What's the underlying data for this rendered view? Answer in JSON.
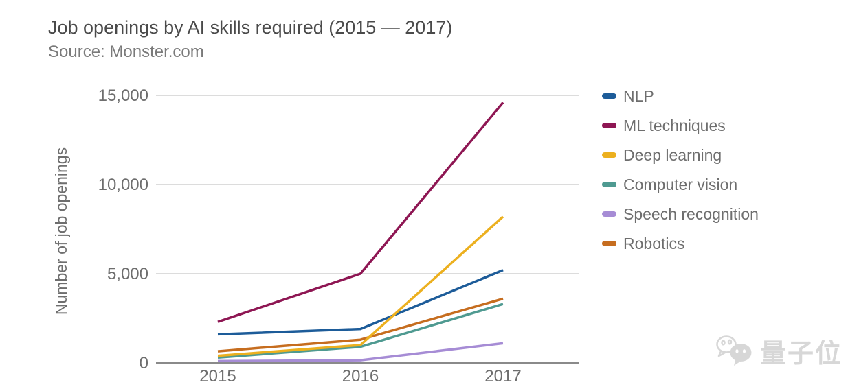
{
  "page": {
    "background": "#ffffff",
    "watermark": {
      "text": "量子位",
      "icon": "chat-bubbles-icon",
      "color": "#d7d7d7"
    }
  },
  "chart_data": {
    "type": "line",
    "title": "Job openings by AI skills required (2015 — 2017)",
    "subtitle": "Source: Monster.com",
    "xlabel": "",
    "ylabel": "Number of job openings",
    "categories": [
      "2015",
      "2016",
      "2017"
    ],
    "ylim": [
      0,
      15000
    ],
    "yticks": [
      {
        "value": 0,
        "label": "0"
      },
      {
        "value": 5000,
        "label": "5,000"
      },
      {
        "value": 10000,
        "label": "10,000"
      },
      {
        "value": 15000,
        "label": "15,000"
      }
    ],
    "grid": "horizontal",
    "legend_position": "right",
    "series": [
      {
        "name": "NLP",
        "color": "#1d5c99",
        "values": [
          1600,
          1900,
          5200
        ]
      },
      {
        "name": "ML techniques",
        "color": "#8e1653",
        "values": [
          2300,
          5000,
          14600
        ]
      },
      {
        "name": "Deep learning",
        "color": "#ecb01f",
        "values": [
          400,
          1000,
          8200
        ]
      },
      {
        "name": "Computer vision",
        "color": "#4f9a91",
        "values": [
          300,
          900,
          3300
        ]
      },
      {
        "name": "Speech recognition",
        "color": "#a68cd5",
        "values": [
          100,
          150,
          1100
        ]
      },
      {
        "name": "Robotics",
        "color": "#c66d1f",
        "values": [
          650,
          1300,
          3600
        ]
      }
    ],
    "axis_text_color": "#6e6e6e",
    "gridline_color": "#dcdcdc",
    "baseline_color": "#8a8a8a"
  }
}
